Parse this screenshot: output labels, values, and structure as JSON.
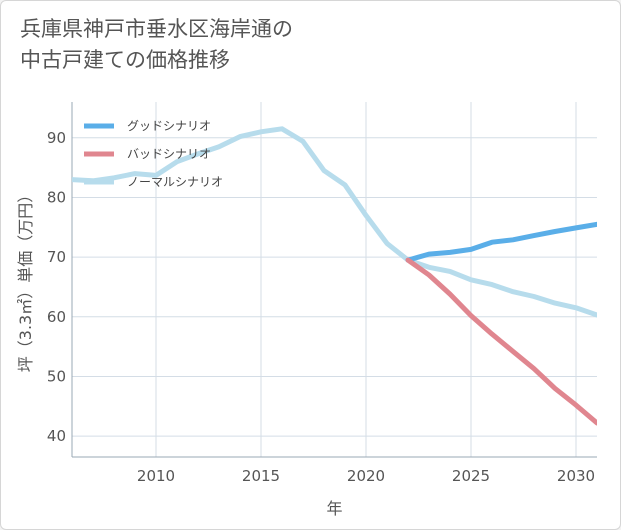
{
  "title_lines": [
    "兵庫県神戸市垂水区海岸通の",
    "中古戸建ての価格推移"
  ],
  "chart_data": {
    "type": "line",
    "xlabel": "年",
    "ylabel": "坪（3.3㎡）単価（万円）",
    "xlim": [
      2006,
      2031
    ],
    "ylim": [
      36.5,
      96
    ],
    "xticks": [
      2010,
      2015,
      2020,
      2025,
      2030
    ],
    "yticks": [
      40,
      50,
      60,
      70,
      80,
      90
    ],
    "grid": true,
    "legend_position": "top-left",
    "series": [
      {
        "name": "グッドシナリオ",
        "color": "#5aaee8",
        "x": [
          2022,
          2023,
          2024,
          2025,
          2026,
          2027,
          2028,
          2029,
          2030,
          2031
        ],
        "y": [
          69.5,
          70.5,
          70.8,
          71.3,
          72.5,
          72.9,
          73.6,
          74.3,
          74.9,
          75.5
        ]
      },
      {
        "name": "バッドシナリオ",
        "color": "#e0868f",
        "x": [
          2022,
          2023,
          2024,
          2025,
          2026,
          2027,
          2028,
          2029,
          2030,
          2031
        ],
        "y": [
          69.5,
          67.0,
          63.8,
          60.2,
          57.1,
          54.2,
          51.3,
          48.0,
          45.2,
          42.2
        ]
      },
      {
        "name": "ノーマルシナリオ",
        "color": "#b7dcec",
        "x": [
          2006,
          2007,
          2008,
          2009,
          2010,
          2011,
          2012,
          2013,
          2014,
          2015,
          2016,
          2017,
          2018,
          2019,
          2020,
          2021,
          2022,
          2023,
          2024,
          2025,
          2026,
          2027,
          2028,
          2029,
          2030,
          2031
        ],
        "y": [
          83.0,
          82.8,
          83.3,
          84.0,
          83.7,
          86.0,
          87.3,
          88.5,
          90.2,
          91.0,
          91.5,
          89.4,
          84.5,
          82.1,
          77.0,
          72.3,
          69.5,
          68.3,
          67.6,
          66.2,
          65.4,
          64.2,
          63.4,
          62.3,
          61.5,
          60.3
        ]
      }
    ]
  }
}
